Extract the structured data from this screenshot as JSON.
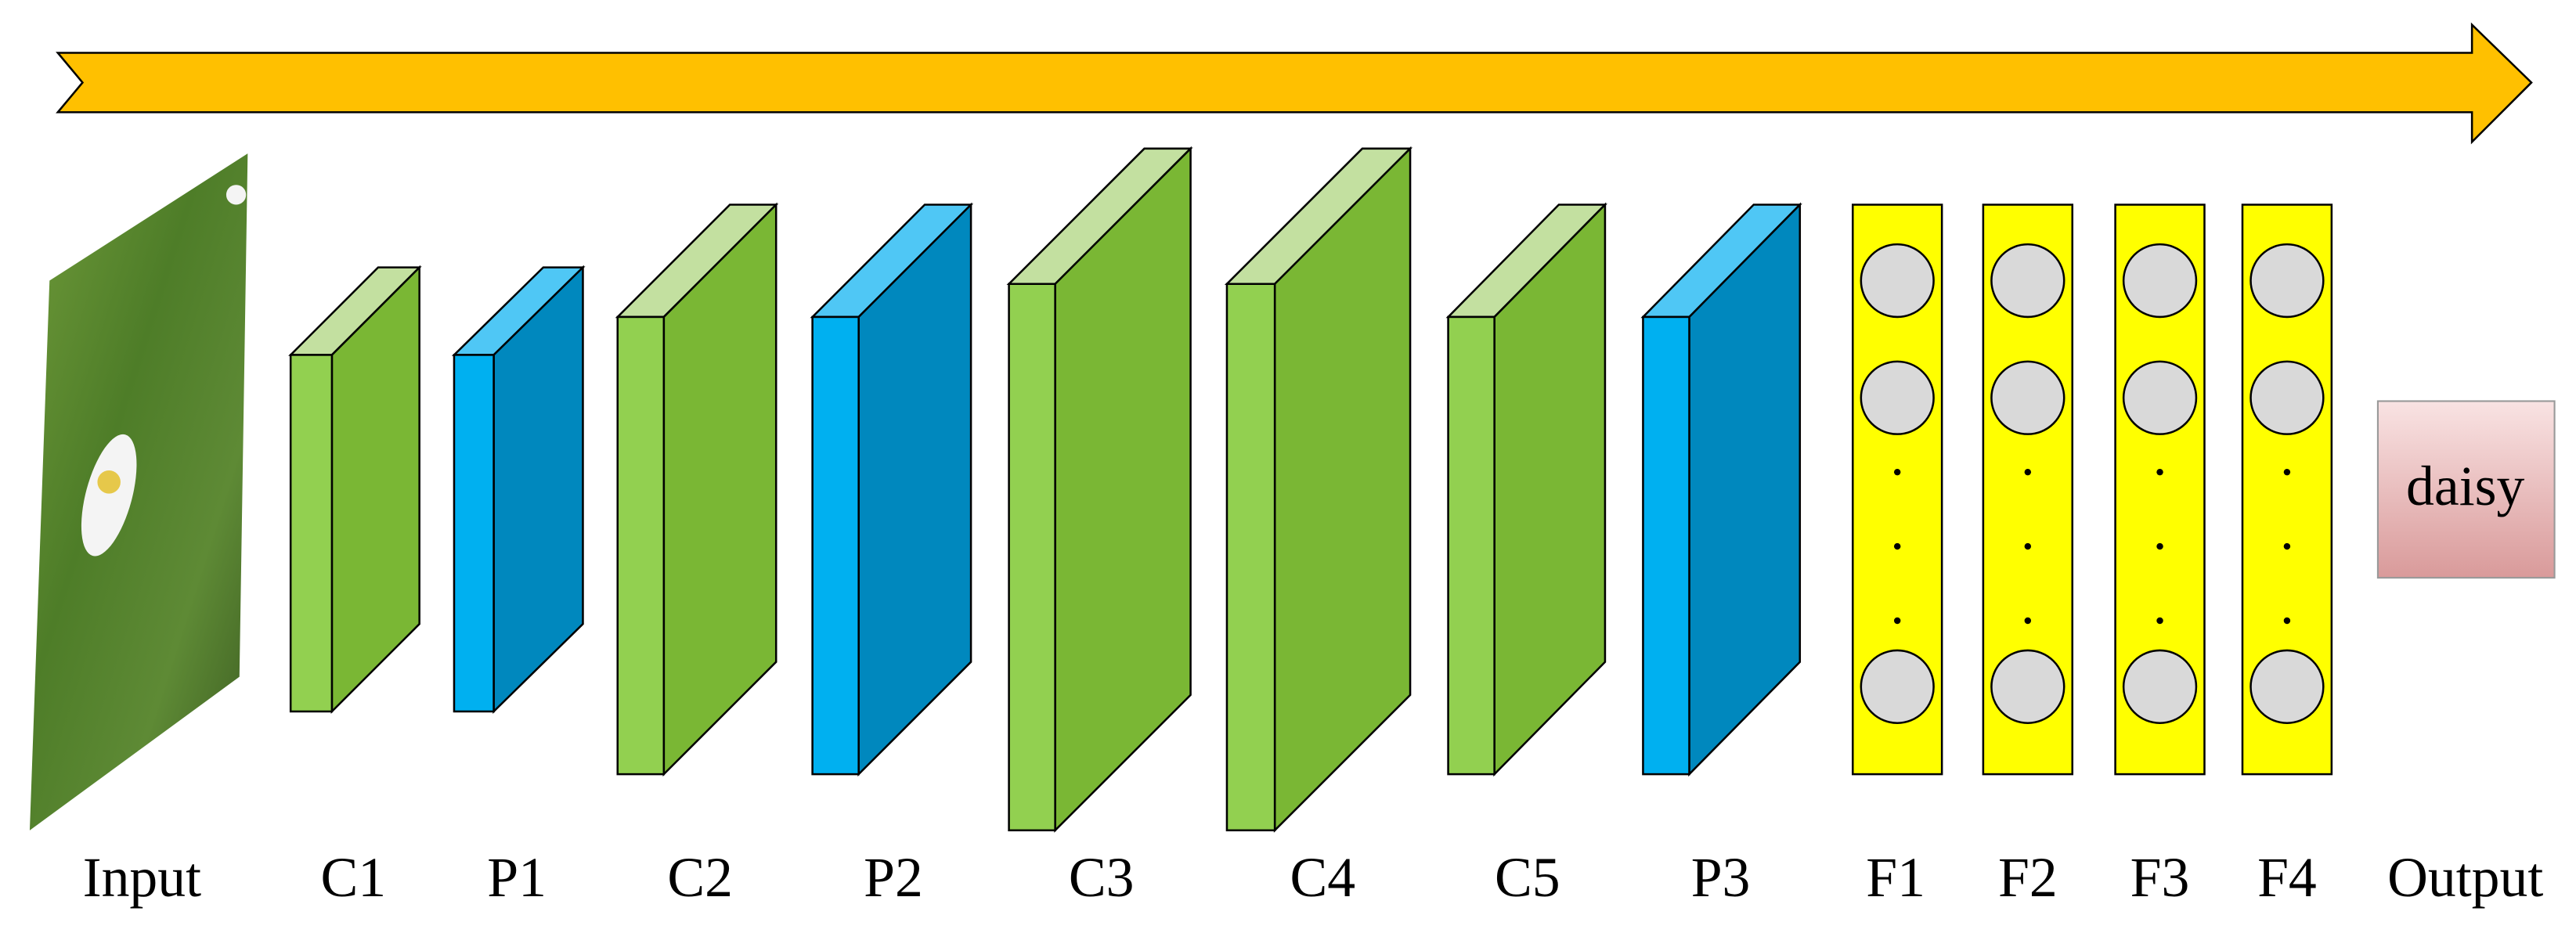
{
  "layers": [
    "Input",
    "C1",
    "P1",
    "C2",
    "P2",
    "C3",
    "C4",
    "C5",
    "P3",
    "F1",
    "F2",
    "F3",
    "F4",
    "Output"
  ],
  "output_class": "daisy"
}
